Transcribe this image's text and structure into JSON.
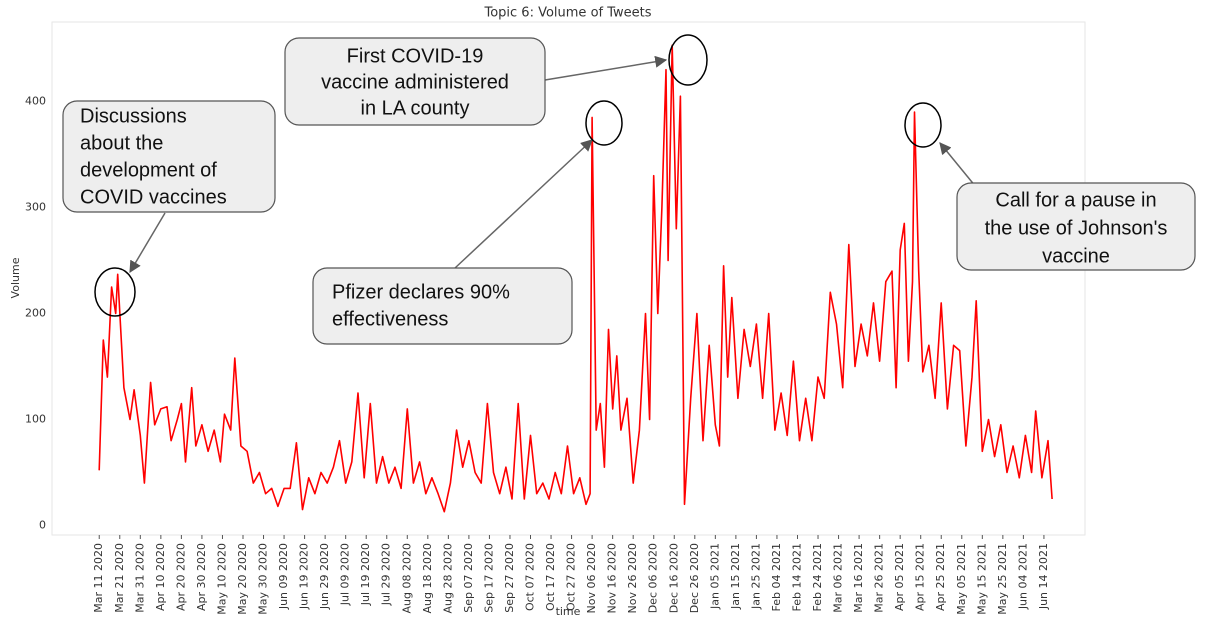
{
  "chart_data": {
    "type": "line",
    "title": "Topic 6: Volume of Tweets",
    "xlabel": "time",
    "ylabel": "Volume",
    "color": "#ff0000",
    "x": [
      "2020-03-11",
      "2020-03-13",
      "2020-03-15",
      "2020-03-17",
      "2020-03-19",
      "2020-03-20",
      "2020-03-23",
      "2020-03-26",
      "2020-03-28",
      "2020-03-31",
      "2020-04-02",
      "2020-04-05",
      "2020-04-07",
      "2020-04-10",
      "2020-04-13",
      "2020-04-15",
      "2020-04-18",
      "2020-04-20",
      "2020-04-22",
      "2020-04-25",
      "2020-04-27",
      "2020-04-30",
      "2020-05-03",
      "2020-05-06",
      "2020-05-09",
      "2020-05-11",
      "2020-05-14",
      "2020-05-16",
      "2020-05-19",
      "2020-05-22",
      "2020-05-25",
      "2020-05-28",
      "2020-05-31",
      "2020-06-03",
      "2020-06-06",
      "2020-06-09",
      "2020-06-12",
      "2020-06-15",
      "2020-06-18",
      "2020-06-21",
      "2020-06-24",
      "2020-06-27",
      "2020-06-30",
      "2020-07-03",
      "2020-07-06",
      "2020-07-09",
      "2020-07-12",
      "2020-07-15",
      "2020-07-18",
      "2020-07-21",
      "2020-07-24",
      "2020-07-27",
      "2020-07-30",
      "2020-08-02",
      "2020-08-05",
      "2020-08-08",
      "2020-08-11",
      "2020-08-14",
      "2020-08-17",
      "2020-08-20",
      "2020-08-23",
      "2020-08-26",
      "2020-08-29",
      "2020-09-01",
      "2020-09-04",
      "2020-09-07",
      "2020-09-10",
      "2020-09-13",
      "2020-09-16",
      "2020-09-19",
      "2020-09-22",
      "2020-09-25",
      "2020-09-28",
      "2020-10-01",
      "2020-10-04",
      "2020-10-07",
      "2020-10-10",
      "2020-10-13",
      "2020-10-16",
      "2020-10-19",
      "2020-10-22",
      "2020-10-25",
      "2020-10-28",
      "2020-10-31",
      "2020-11-03",
      "2020-11-05",
      "2020-11-06",
      "2020-11-08",
      "2020-11-10",
      "2020-11-12",
      "2020-11-14",
      "2020-11-16",
      "2020-11-18",
      "2020-11-20",
      "2020-11-23",
      "2020-11-26",
      "2020-11-29",
      "2020-12-02",
      "2020-12-04",
      "2020-12-06",
      "2020-12-08",
      "2020-12-10",
      "2020-12-12",
      "2020-12-13",
      "2020-12-15",
      "2020-12-17",
      "2020-12-19",
      "2020-12-21",
      "2020-12-24",
      "2020-12-27",
      "2020-12-30",
      "2021-01-02",
      "2021-01-05",
      "2021-01-07",
      "2021-01-09",
      "2021-01-11",
      "2021-01-13",
      "2021-01-16",
      "2021-01-19",
      "2021-01-22",
      "2021-01-25",
      "2021-01-28",
      "2021-01-31",
      "2021-02-03",
      "2021-02-06",
      "2021-02-09",
      "2021-02-12",
      "2021-02-15",
      "2021-02-18",
      "2021-02-21",
      "2021-02-24",
      "2021-02-27",
      "2021-03-02",
      "2021-03-05",
      "2021-03-08",
      "2021-03-11",
      "2021-03-14",
      "2021-03-17",
      "2021-03-20",
      "2021-03-23",
      "2021-03-26",
      "2021-03-29",
      "2021-04-01",
      "2021-04-03",
      "2021-04-05",
      "2021-04-07",
      "2021-04-09",
      "2021-04-11",
      "2021-04-12",
      "2021-04-14",
      "2021-04-16",
      "2021-04-19",
      "2021-04-22",
      "2021-04-25",
      "2021-04-28",
      "2021-05-01",
      "2021-05-04",
      "2021-05-07",
      "2021-05-10",
      "2021-05-12",
      "2021-05-15",
      "2021-05-18",
      "2021-05-21",
      "2021-05-24",
      "2021-05-27",
      "2021-05-30",
      "2021-06-02",
      "2021-06-05",
      "2021-06-08",
      "2021-06-10",
      "2021-06-13",
      "2021-06-16",
      "2021-06-18"
    ],
    "values": [
      52,
      175,
      140,
      225,
      200,
      237,
      130,
      100,
      128,
      85,
      40,
      135,
      95,
      110,
      112,
      80,
      100,
      115,
      60,
      130,
      75,
      95,
      70,
      90,
      60,
      105,
      90,
      158,
      75,
      70,
      40,
      50,
      30,
      35,
      18,
      35,
      35,
      78,
      15,
      45,
      30,
      50,
      40,
      55,
      80,
      40,
      60,
      125,
      45,
      115,
      40,
      65,
      40,
      55,
      35,
      110,
      40,
      60,
      30,
      45,
      30,
      13,
      40,
      90,
      55,
      80,
      50,
      40,
      115,
      50,
      30,
      55,
      25,
      115,
      25,
      85,
      30,
      40,
      25,
      50,
      30,
      75,
      30,
      45,
      20,
      30,
      385,
      90,
      115,
      55,
      185,
      110,
      160,
      90,
      120,
      40,
      90,
      200,
      100,
      330,
      200,
      300,
      430,
      250,
      453,
      280,
      405,
      20,
      120,
      200,
      80,
      170,
      95,
      75,
      245,
      140,
      215,
      120,
      185,
      150,
      190,
      120,
      200,
      90,
      125,
      85,
      155,
      80,
      120,
      80,
      140,
      120,
      220,
      190,
      130,
      265,
      150,
      190,
      160,
      210,
      155,
      230,
      240,
      130,
      260,
      285,
      155,
      230,
      390,
      240,
      145,
      170,
      120,
      210,
      110,
      170,
      165,
      75,
      140,
      212,
      70,
      100,
      65,
      95,
      50,
      75,
      45,
      85,
      50,
      108,
      45,
      80,
      25
    ],
    "xlim": [
      "2020-02-17",
      "2021-07-04"
    ],
    "xticks": [
      {
        "value": "2020-03-11",
        "label": "Mar 11 2020"
      },
      {
        "value": "2020-03-21",
        "label": "Mar 21 2020"
      },
      {
        "value": "2020-03-31",
        "label": "Mar 31 2020"
      },
      {
        "value": "2020-04-10",
        "label": "Apr 10 2020"
      },
      {
        "value": "2020-04-20",
        "label": "Apr 20 2020"
      },
      {
        "value": "2020-04-30",
        "label": "Apr 30 2020"
      },
      {
        "value": "2020-05-10",
        "label": "May 10 2020"
      },
      {
        "value": "2020-05-20",
        "label": "May 20 2020"
      },
      {
        "value": "2020-05-30",
        "label": "May 30 2020"
      },
      {
        "value": "2020-06-09",
        "label": "Jun 09 2020"
      },
      {
        "value": "2020-06-19",
        "label": "Jun 19 2020"
      },
      {
        "value": "2020-06-29",
        "label": "Jun 29 2020"
      },
      {
        "value": "2020-07-09",
        "label": "Jul 09 2020"
      },
      {
        "value": "2020-07-19",
        "label": "Jul 19 2020"
      },
      {
        "value": "2020-07-29",
        "label": "Jul 29 2020"
      },
      {
        "value": "2020-08-08",
        "label": "Aug 08 2020"
      },
      {
        "value": "2020-08-18",
        "label": "Aug 18 2020"
      },
      {
        "value": "2020-08-28",
        "label": "Aug 28 2020"
      },
      {
        "value": "2020-09-07",
        "label": "Sep 07 2020"
      },
      {
        "value": "2020-09-17",
        "label": "Sep 17 2020"
      },
      {
        "value": "2020-09-27",
        "label": "Sep 27 2020"
      },
      {
        "value": "2020-10-07",
        "label": "Oct 07 2020"
      },
      {
        "value": "2020-10-17",
        "label": "Oct 17 2020"
      },
      {
        "value": "2020-10-27",
        "label": "Oct 27 2020"
      },
      {
        "value": "2020-11-06",
        "label": "Nov 06 2020"
      },
      {
        "value": "2020-11-16",
        "label": "Nov 16 2020"
      },
      {
        "value": "2020-11-26",
        "label": "Nov 26 2020"
      },
      {
        "value": "2020-12-06",
        "label": "Dec 06 2020"
      },
      {
        "value": "2020-12-16",
        "label": "Dec 16 2020"
      },
      {
        "value": "2020-12-26",
        "label": "Dec 26 2020"
      },
      {
        "value": "2021-01-05",
        "label": "Jan 05 2021"
      },
      {
        "value": "2021-01-15",
        "label": "Jan 15 2021"
      },
      {
        "value": "2021-01-25",
        "label": "Jan 25 2021"
      },
      {
        "value": "2021-02-04",
        "label": "Feb 04 2021"
      },
      {
        "value": "2021-02-14",
        "label": "Feb 14 2021"
      },
      {
        "value": "2021-02-24",
        "label": "Feb 24 2021"
      },
      {
        "value": "2021-03-06",
        "label": "Mar 06 2021"
      },
      {
        "value": "2021-03-16",
        "label": "Mar 16 2021"
      },
      {
        "value": "2021-03-26",
        "label": "Mar 26 2021"
      },
      {
        "value": "2021-04-05",
        "label": "Apr 05 2021"
      },
      {
        "value": "2021-04-15",
        "label": "Apr 15 2021"
      },
      {
        "value": "2021-04-25",
        "label": "Apr 25 2021"
      },
      {
        "value": "2021-05-05",
        "label": "May 05 2021"
      },
      {
        "value": "2021-05-15",
        "label": "May 15 2021"
      },
      {
        "value": "2021-05-25",
        "label": "May 25 2021"
      },
      {
        "value": "2021-06-04",
        "label": "Jun 04 2021"
      },
      {
        "value": "2021-06-14",
        "label": "Jun 14 2021"
      }
    ],
    "ylim": [
      -9,
      475
    ],
    "yticks": [
      0,
      100,
      200,
      300,
      400
    ],
    "grid": false,
    "annotations": [
      {
        "lines": [
          "Discussions",
          "about the",
          "development of",
          "COVID vaccines"
        ]
      },
      {
        "lines": [
          "First COVID-19",
          "vaccine administered",
          "in LA county"
        ]
      },
      {
        "lines": [
          "Pfizer declares 90%",
          "effectiveness"
        ]
      },
      {
        "lines": [
          "Call for a pause in",
          "the use of Johnson's",
          "vaccine"
        ]
      }
    ]
  }
}
